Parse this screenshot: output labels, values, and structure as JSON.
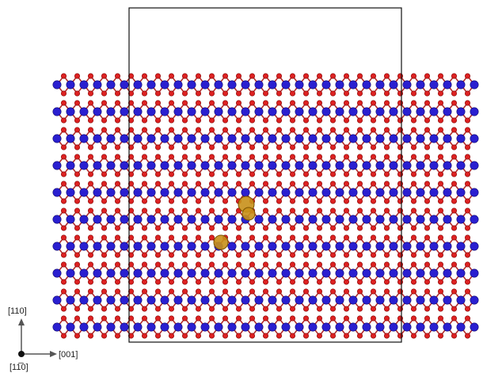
{
  "axes": {
    "vertical": "[110]",
    "horizontal": "[001]",
    "out_of_plane": "[11̅0]"
  }
}
